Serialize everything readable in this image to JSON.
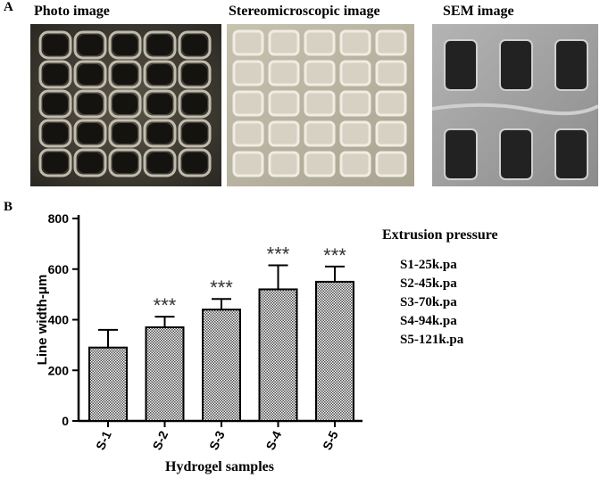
{
  "panels": {
    "a": "A",
    "b": "B"
  },
  "images": [
    {
      "title": "Photo image"
    },
    {
      "title": "Stereomicroscopic image"
    },
    {
      "title": "SEM image"
    }
  ],
  "chart_data": {
    "type": "bar",
    "xlabel": "Hydrogel samples",
    "ylabel": "Line width-μm",
    "categories": [
      "S-1",
      "S-2",
      "S-3",
      "S-4",
      "S-5"
    ],
    "values": [
      290,
      370,
      440,
      520,
      550
    ],
    "errors": [
      70,
      42,
      42,
      95,
      60
    ],
    "significance": [
      "",
      "***",
      "***",
      "***",
      "***"
    ],
    "ylim": [
      0,
      800
    ],
    "yticks": [
      0,
      200,
      400,
      600,
      800
    ],
    "bar_pattern": "checkered",
    "colors": {
      "bar_fill": "#4a4a4a",
      "bar_light": "#ffffff",
      "axis": "#000000"
    }
  },
  "legend": {
    "title": "Extrusion pressure",
    "items": [
      "S1-25k.pa",
      "S2-45k.pa",
      "S3-70k.pa",
      "S4-94k.pa",
      "S5-121k.pa"
    ]
  }
}
